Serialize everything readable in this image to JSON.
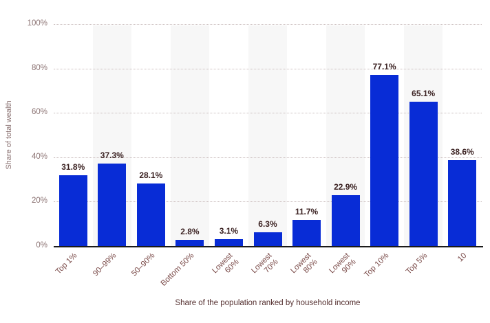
{
  "chart_data": {
    "type": "bar",
    "categories": [
      "Top 1%",
      "90–99%",
      "50–90%",
      "Bottom 50%",
      "Lowest 60%",
      "Lowest 70%",
      "Lowest 80%",
      "Lowest 90%",
      "Top 10%",
      "Top 5%",
      "10"
    ],
    "values": [
      31.8,
      37.3,
      28.1,
      2.8,
      3.1,
      6.3,
      11.7,
      22.9,
      77.1,
      65.1,
      38.6
    ],
    "value_labels": [
      "31.8%",
      "37.3%",
      "28.1%",
      "2.8%",
      "3.1%",
      "6.3%",
      "11.7%",
      "22.9%",
      "77.1%",
      "65.1%",
      "38.6%"
    ],
    "title": "",
    "xlabel": "Share of the population ranked by household income",
    "ylabel": "Share of total wealth",
    "ylim": [
      0,
      100
    ],
    "yticks": [
      0,
      20,
      40,
      60,
      80,
      100
    ],
    "ytick_labels": [
      "0%",
      "20%",
      "40%",
      "60%",
      "80%",
      "100%"
    ],
    "grid": "horizontal-dotted",
    "legend": "none",
    "band_pattern": "alternating-columns",
    "colors": {
      "bar": "#082cd6",
      "bar_label": "#3b2222",
      "y_tick": "#8a7171",
      "x_tick": "#7a4a48",
      "axis_title": "#553030",
      "gridline": "#c9bcbc",
      "band": "#f7f7f7",
      "axis_line": "#1a1a1a",
      "background": "#ffffff"
    }
  }
}
